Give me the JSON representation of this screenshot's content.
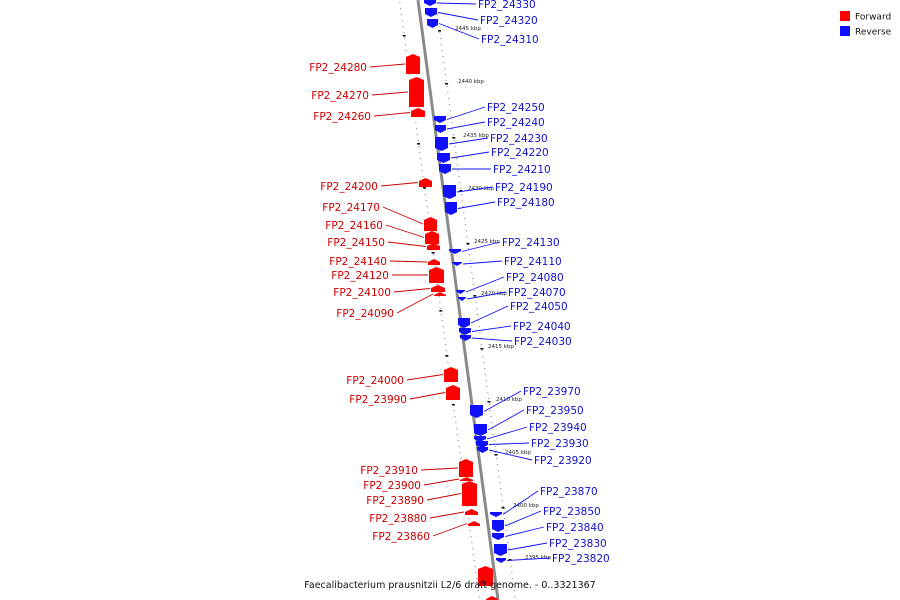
{
  "caption": "Faecalibacterium prausnitzii L2/6 draft genome. - 0..3321367",
  "legend": {
    "forward": {
      "label": "Forward",
      "color": "#ff0000"
    },
    "reverse": {
      "label": "Reverse",
      "color": "#1010ff"
    }
  },
  "ticks": [
    "2445 kbp",
    "2440 kbp",
    "2435 kbp",
    "2430 kbp",
    "2425 kbp",
    "2420 kbp",
    "2415 kbp",
    "2410 kbp",
    "2405 kbp",
    "2400 kbp",
    "2395 kbp"
  ],
  "reverse_genes": [
    "FP2_24330",
    "FP2_24320",
    "FP2_24310",
    "FP2_24250",
    "FP2_24240",
    "FP2_24230",
    "FP2_24220",
    "FP2_24210",
    "FP2_24190",
    "FP2_24180",
    "FP2_24130",
    "FP2_24110",
    "FP2_24080",
    "FP2_24070",
    "FP2_24050",
    "FP2_24040",
    "FP2_24030",
    "FP2_23970",
    "FP2_23950",
    "FP2_23940",
    "FP2_23930",
    "FP2_23920",
    "FP2_23870",
    "FP2_23850",
    "FP2_23840",
    "FP2_23830",
    "FP2_23820"
  ],
  "forward_genes": [
    "FP2_24280",
    "FP2_24270",
    "FP2_24260",
    "FP2_24200",
    "FP2_24170",
    "FP2_24160",
    "FP2_24150",
    "FP2_24140",
    "FP2_24120",
    "FP2_24100",
    "FP2_24090",
    "FP2_24000",
    "FP2_23990",
    "FP2_23910",
    "FP2_23900",
    "FP2_23890",
    "FP2_23880",
    "FP2_23860"
  ]
}
